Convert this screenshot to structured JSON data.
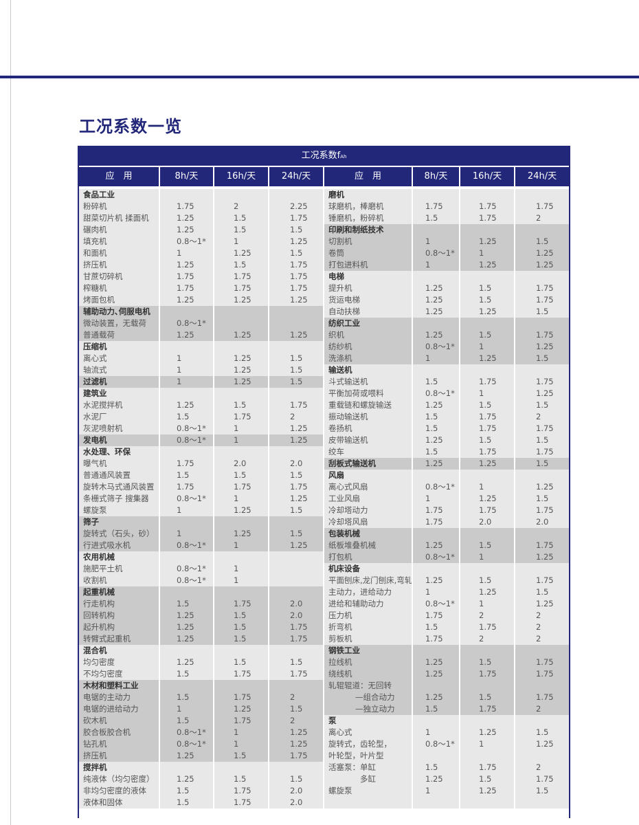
{
  "page_title": "工况系数一览",
  "table": {
    "title": "工况系数f",
    "title_sub": "Ah",
    "columns": [
      "应　用",
      "8h/天",
      "16h/天",
      "24h/天",
      "应　用",
      "8h/天",
      "16h/天",
      "24h/天"
    ],
    "shade_colors": {
      "light": "#e8e8e8",
      "dark": "#cacaca",
      "header": "#22277a"
    },
    "left": [
      {
        "title": "食品工业",
        "shade": "light",
        "items": [
          {
            "label": "粉碎机",
            "v": [
              "1.75",
              "2",
              "2.25"
            ]
          },
          {
            "label": "甜菜切片机 揉面机",
            "v": [
              "1.25",
              "1.5",
              "1.75"
            ]
          },
          {
            "label": "碾肉机",
            "v": [
              "1.25",
              "1.5",
              "1.5"
            ]
          },
          {
            "label": "填充机",
            "v": [
              "0.8～1*",
              "1",
              "1.25"
            ]
          },
          {
            "label": "和面机",
            "v": [
              "1",
              "1.25",
              "1.5"
            ]
          },
          {
            "label": "挤压机",
            "v": [
              "1.25",
              "1.5",
              "1.75"
            ]
          },
          {
            "label": "甘蔗切碎机",
            "v": [
              "1.75",
              "1.75",
              "1.75"
            ]
          },
          {
            "label": "榨糖机",
            "v": [
              "1.75",
              "1.75",
              "1.75"
            ]
          },
          {
            "label": "烤面包机",
            "v": [
              "1.25",
              "1.25",
              "1.25"
            ]
          }
        ]
      },
      {
        "title": "辅助动力､伺服电机",
        "shade": "dark",
        "items": [
          {
            "label": "微动装置，无载荷",
            "v": [
              "0.8～1*",
              "",
              ""
            ]
          },
          {
            "label": "普通载荷",
            "v": [
              "1.25",
              "1.25",
              "1.25"
            ]
          }
        ]
      },
      {
        "title": "压缩机",
        "shade": "light",
        "items": [
          {
            "label": "离心式",
            "v": [
              "1",
              "1.25",
              "1.5"
            ]
          },
          {
            "label": "轴流式",
            "v": [
              "1",
              "1.25",
              "1.5"
            ]
          }
        ]
      },
      {
        "title": "过滤机",
        "shade": "dark",
        "v": [
          "1",
          "1.25",
          "1.5"
        ],
        "items": []
      },
      {
        "title": "建筑业",
        "shade": "light",
        "items": [
          {
            "label": "水泥搅拌机",
            "v": [
              "1.25",
              "1.5",
              "1.75"
            ]
          },
          {
            "label": "水泥厂",
            "v": [
              "1.5",
              "1.75",
              "2"
            ]
          },
          {
            "label": "灰泥喷射机",
            "v": [
              "0.8～1*",
              "1",
              "1.25"
            ]
          }
        ]
      },
      {
        "title": "发电机",
        "shade": "dark",
        "v": [
          "0.8～1*",
          "1",
          "1.25"
        ],
        "items": []
      },
      {
        "title": "水处理、环保",
        "shade": "light",
        "items": [
          {
            "label": "曝气机",
            "v": [
              "1.75",
              "2.0",
              "2.0"
            ]
          },
          {
            "label": "普通通风装置",
            "v": [
              "1.5",
              "1.5",
              "1.5"
            ]
          },
          {
            "label": "旋转木马式通风装置",
            "v": [
              "1.75",
              "1.75",
              "1.75"
            ]
          },
          {
            "label": "条栅式筛子 搜集器",
            "v": [
              "0.8～1*",
              "1",
              "1.25"
            ]
          },
          {
            "label": "螺旋泵",
            "v": [
              "1",
              "1.25",
              "1.5"
            ]
          }
        ]
      },
      {
        "title": "筛子",
        "shade": "dark",
        "items": [
          {
            "label": "旋转式（石头，砂）",
            "v": [
              "1",
              "1.25",
              "1.5"
            ]
          },
          {
            "label": "行进式吸水机",
            "v": [
              "0.8～1*",
              "1",
              "1.25"
            ]
          }
        ]
      },
      {
        "title": "农用机械",
        "shade": "light",
        "items": [
          {
            "label": "施肥平土机",
            "v": [
              "0.8～1*",
              "1",
              ""
            ]
          },
          {
            "label": "收割机",
            "v": [
              "0.8～1*",
              "1",
              ""
            ]
          }
        ]
      },
      {
        "title": "起重机械",
        "shade": "dark",
        "items": [
          {
            "label": "行走机构",
            "v": [
              "1.5",
              "1.75",
              "2.0"
            ]
          },
          {
            "label": "回转机构",
            "v": [
              "1.25",
              "1.5",
              "2.0"
            ]
          },
          {
            "label": "起升机构",
            "v": [
              "1.25",
              "1.5",
              "1.75"
            ]
          },
          {
            "label": "转臂式起重机",
            "v": [
              "1.25",
              "1.5",
              "1.75"
            ]
          }
        ]
      },
      {
        "title": "混合机",
        "shade": "light",
        "items": [
          {
            "label": "均匀密度",
            "v": [
              "1.25",
              "1.5",
              "1.5"
            ]
          },
          {
            "label": "不均匀密度",
            "v": [
              "1.5",
              "1.75",
              "1.75"
            ]
          }
        ]
      },
      {
        "title": "木材和塑料工业",
        "shade": "dark",
        "items": [
          {
            "label": "电锯的主动力",
            "v": [
              "1.5",
              "1.75",
              "2"
            ]
          },
          {
            "label": "电锯的进给动力",
            "v": [
              "1",
              "1.25",
              "1.5"
            ]
          },
          {
            "label": "砍木机",
            "v": [
              "1.5",
              "1.75",
              "2"
            ]
          },
          {
            "label": "胶合板胶合机",
            "v": [
              "0.8～1*",
              "1",
              "1.25"
            ]
          },
          {
            "label": "钻孔机",
            "v": [
              "0.8～1*",
              "1",
              "1.25"
            ]
          },
          {
            "label": "挤压机",
            "v": [
              "1.25",
              "1.5",
              "1.75"
            ]
          }
        ]
      },
      {
        "title": "搅拌机",
        "shade": "light",
        "items": [
          {
            "label": "纯液体（均匀密度）",
            "v": [
              "1.25",
              "1.5",
              "1.5"
            ]
          },
          {
            "label": "非均匀密度的液体",
            "v": [
              "1.5",
              "1.75",
              "2.0"
            ]
          },
          {
            "label": "液体和固体",
            "v": [
              "1.5",
              "1.75",
              "2.0"
            ]
          }
        ]
      }
    ],
    "right": [
      {
        "title": "磨机",
        "shade": "light",
        "items": [
          {
            "label": "球磨机，棒磨机",
            "v": [
              "1.75",
              "1.75",
              "1.75"
            ]
          },
          {
            "label": "锤磨机，粉碎机",
            "v": [
              "1.5",
              "1.75",
              "2"
            ]
          }
        ]
      },
      {
        "title": "印刷和制纸技术",
        "shade": "dark",
        "items": [
          {
            "label": "切割机",
            "v": [
              "1",
              "1.25",
              "1.5"
            ]
          },
          {
            "label": "卷筒",
            "v": [
              "0.8～1*",
              "1",
              "1.25"
            ]
          },
          {
            "label": "打包进料机",
            "v": [
              "1",
              "1.25",
              "1.25"
            ]
          }
        ]
      },
      {
        "title": "电梯",
        "shade": "light",
        "items": [
          {
            "label": "提升机",
            "v": [
              "1.25",
              "1.5",
              "1.75"
            ]
          },
          {
            "label": "货运电梯",
            "v": [
              "1.25",
              "1.5",
              "1.75"
            ]
          },
          {
            "label": "自动扶梯",
            "v": [
              "1.25",
              "1.25",
              "1.5"
            ]
          }
        ]
      },
      {
        "title": "纺织工业",
        "shade": "dark",
        "items": [
          {
            "label": "织机",
            "v": [
              "1.25",
              "1.5",
              "1.75"
            ]
          },
          {
            "label": "纺纱机",
            "v": [
              "0.8～1*",
              "1",
              "1.25"
            ]
          },
          {
            "label": "洗涤机",
            "v": [
              "1",
              "1.25",
              "1.5"
            ]
          }
        ]
      },
      {
        "title": "输送机",
        "shade": "light",
        "items": [
          {
            "label": "斗式输送机",
            "v": [
              "1.5",
              "1.75",
              "1.75"
            ]
          },
          {
            "label": "平衡加荷或喂料",
            "v": [
              "0.8～1*",
              "1",
              "1.25"
            ]
          },
          {
            "label": "重载链和螺旋输送",
            "v": [
              "1.25",
              "1.5",
              "1.5"
            ]
          },
          {
            "label": "振动输送机",
            "v": [
              "1.5",
              "1.75",
              "2"
            ]
          },
          {
            "label": "卷扬机",
            "v": [
              "1.5",
              "1.75",
              "1.75"
            ]
          },
          {
            "label": "皮带输送机",
            "v": [
              "1.25",
              "1.5",
              "1.5"
            ]
          },
          {
            "label": "绞车",
            "v": [
              "1.5",
              "1.75",
              "1.75"
            ]
          }
        ]
      },
      {
        "title": "刮板式输送机",
        "shade": "dark",
        "v": [
          "1.25",
          "1.25",
          "1.5"
        ],
        "items": []
      },
      {
        "title": "风扇",
        "shade": "light",
        "items": [
          {
            "label": "离心式风扇",
            "v": [
              "0.8～1*",
              "1",
              "1.25"
            ]
          },
          {
            "label": "工业风扇",
            "v": [
              "1",
              "1.25",
              "1.5"
            ]
          },
          {
            "label": "冷却塔动力",
            "v": [
              "1.75",
              "1.75",
              "1.75"
            ]
          },
          {
            "label": "冷却塔风扇",
            "v": [
              "1.75",
              "2.0",
              "2.0"
            ]
          }
        ]
      },
      {
        "title": "包装机械",
        "shade": "dark",
        "items": [
          {
            "label": "纸板堆叠机械",
            "v": [
              "1.25",
              "1.5",
              "1.75"
            ]
          },
          {
            "label": "打包机",
            "v": [
              "0.8～1*",
              "1",
              "1.25"
            ]
          }
        ]
      },
      {
        "title": "机床设备",
        "shade": "light",
        "items": [
          {
            "label": "平面刨床,龙门刨床,弯轧机",
            "v": [
              "1.25",
              "1.5",
              "1.75"
            ]
          },
          {
            "label": "主动力，进给动力",
            "v": [
              "1",
              "1.25",
              "1.5"
            ]
          },
          {
            "label": "进给和辅助动力",
            "v": [
              "0.8～1*",
              "1",
              "1.25"
            ]
          },
          {
            "label": "压力机",
            "v": [
              "1.75",
              "2",
              "2"
            ]
          },
          {
            "label": "折弯机",
            "v": [
              "1.5",
              "1.75",
              "2"
            ]
          },
          {
            "label": "剪板机",
            "v": [
              "1.75",
              "2",
              "2"
            ]
          }
        ]
      },
      {
        "title": "钢铁工业",
        "shade": "dark",
        "items": [
          {
            "label": "拉线机",
            "v": [
              "1.25",
              "1.5",
              "1.75"
            ]
          },
          {
            "label": "绕线机",
            "v": [
              "1.25",
              "1.75",
              "1.75"
            ]
          },
          {
            "label": "轧辊辊道：无回转",
            "v": [
              "",
              "",
              ""
            ]
          },
          {
            "label": "—组合动力",
            "indent": true,
            "v": [
              "1.25",
              "1.5",
              "1.75"
            ]
          },
          {
            "label": "—独立动力",
            "indent": true,
            "v": [
              "1.5",
              "1.75",
              "2"
            ]
          }
        ]
      },
      {
        "title": "泵",
        "shade": "light",
        "items": [
          {
            "label": "离心式",
            "v": [
              "1",
              "1.25",
              "1.5"
            ]
          },
          {
            "label": "旋转式，齿轮型，",
            "v": [
              "0.8～1*",
              "1",
              "1.25"
            ]
          },
          {
            "label": "叶轮型，叶片型",
            "v": [
              "",
              "",
              ""
            ]
          },
          {
            "label": "活塞泵：单缸",
            "v": [
              "1.5",
              "1.75",
              "2"
            ]
          },
          {
            "label": "多缸",
            "indent": true,
            "v": [
              "1.25",
              "1.5",
              "1.75"
            ]
          },
          {
            "label": "螺旋泵",
            "v": [
              "1",
              "1.25",
              "1.5"
            ]
          }
        ]
      }
    ]
  }
}
